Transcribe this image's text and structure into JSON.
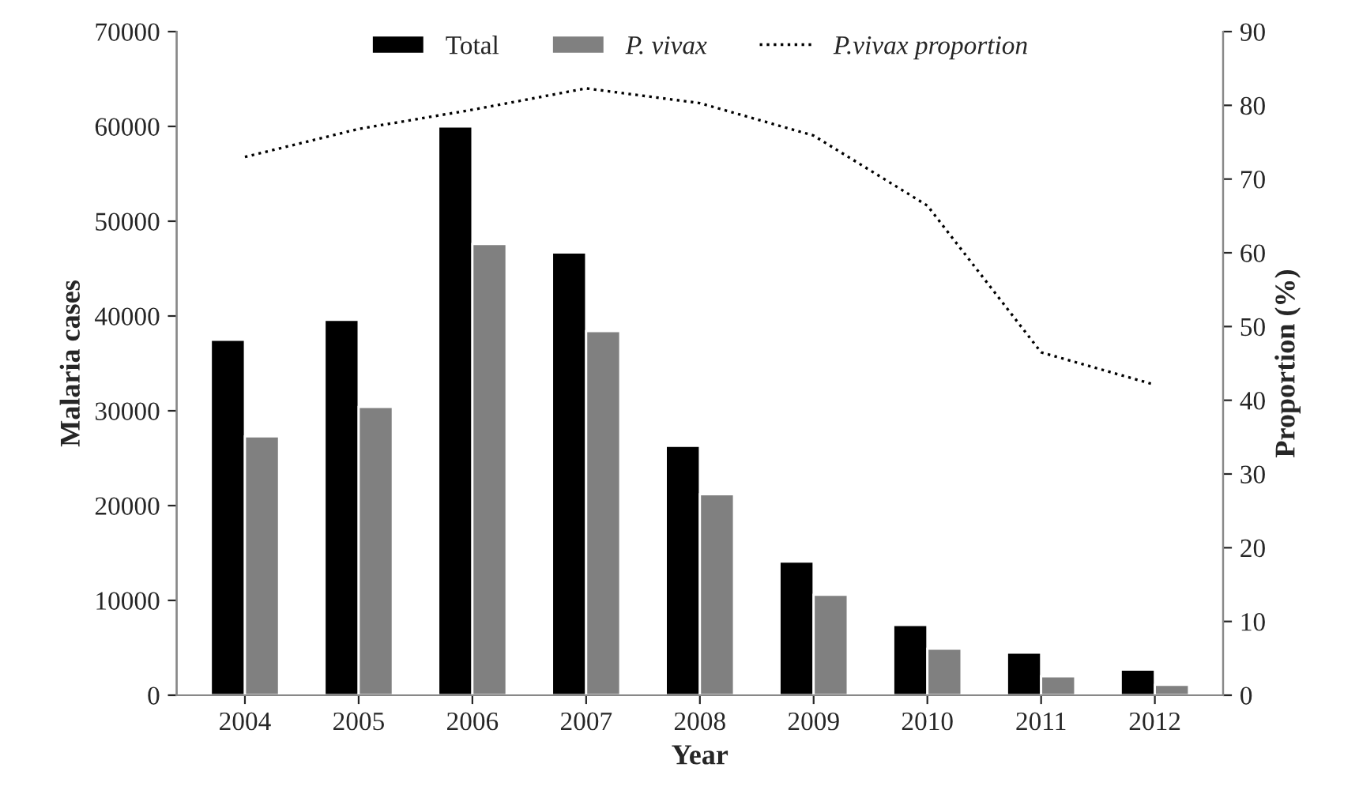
{
  "chart_data": {
    "type": "bar",
    "xlabel": "Year",
    "ylabel": "Malaria cases",
    "y2label": "Proportion (%)",
    "categories": [
      "2004",
      "2005",
      "2006",
      "2007",
      "2008",
      "2009",
      "2010",
      "2011",
      "2012"
    ],
    "series": [
      {
        "name": "Total",
        "color": "#000000",
        "values": [
          37500,
          39600,
          60000,
          46700,
          26300,
          14100,
          7400,
          4500,
          2700
        ]
      },
      {
        "name": "P. vivax",
        "color": "#808080",
        "values": [
          27300,
          30400,
          47600,
          38400,
          21200,
          10600,
          4900,
          2000,
          1100
        ]
      },
      {
        "name": "P.vivax proportion",
        "type": "line",
        "axis": "y2",
        "color": "#000000",
        "line_style": "dotted",
        "values": [
          73,
          76.8,
          79.4,
          82.3,
          80.3,
          75.9,
          66.4,
          46.5,
          42.1
        ]
      }
    ],
    "ylim": [
      0,
      70000
    ],
    "yticks": [
      0,
      10000,
      20000,
      30000,
      40000,
      50000,
      60000,
      70000
    ],
    "y2lim": [
      0,
      90
    ],
    "y2ticks": [
      0,
      10,
      20,
      30,
      40,
      50,
      60,
      70,
      80,
      90
    ],
    "grid": false,
    "legend": "top"
  }
}
